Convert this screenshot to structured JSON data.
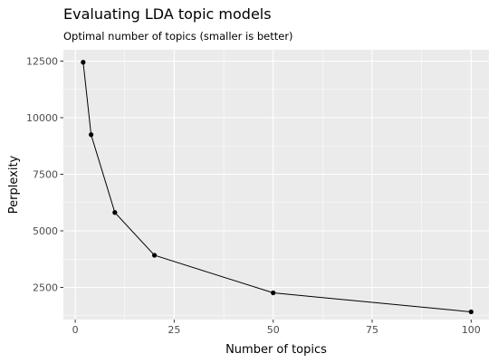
{
  "chart_data": {
    "type": "line",
    "title": "Evaluating LDA topic models",
    "subtitle": "Optimal number of topics (smaller is better)",
    "xlabel": "Number of topics",
    "ylabel": "Perplexity",
    "xlim": [
      -3,
      104.5
    ],
    "ylim": [
      1080,
      13000
    ],
    "xticks": [
      0,
      25,
      50,
      75,
      100
    ],
    "yticks": [
      2500,
      5000,
      7500,
      10000,
      12500
    ],
    "grid": true,
    "legend": "none",
    "series": [
      {
        "x": [
          2,
          4,
          10,
          20,
          50,
          100
        ],
        "y": [
          12450,
          9250,
          5810,
          3920,
          2260,
          1420
        ]
      }
    ],
    "colors": {
      "panel": "#EBEBEB",
      "grid": "#FFFFFF",
      "line": "#000000",
      "tick": "#4D4D4D"
    }
  }
}
